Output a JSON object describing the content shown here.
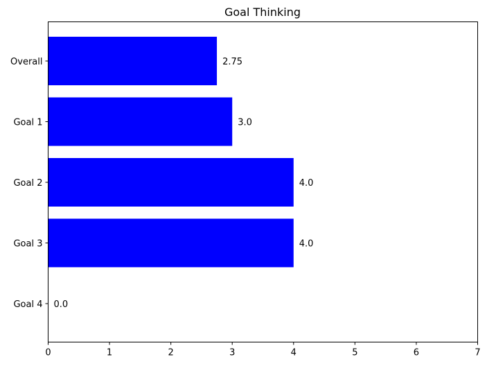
{
  "chart_data": {
    "type": "bar",
    "orientation": "horizontal",
    "title": "Goal Thinking",
    "xlabel": "",
    "ylabel": "",
    "categories": [
      "Overall",
      "Goal 1",
      "Goal 2",
      "Goal 3",
      "Goal 4"
    ],
    "values": [
      2.75,
      3.0,
      4.0,
      4.0,
      0.0
    ],
    "data_labels": [
      "2.75",
      "3.0",
      "4.0",
      "4.0",
      "0.0"
    ],
    "xlim": [
      0,
      7
    ],
    "xticks": [
      "0",
      "1",
      "2",
      "3",
      "4",
      "5",
      "6",
      "7"
    ],
    "grid": false,
    "legend": "none",
    "bar_color": "#0000ff"
  }
}
